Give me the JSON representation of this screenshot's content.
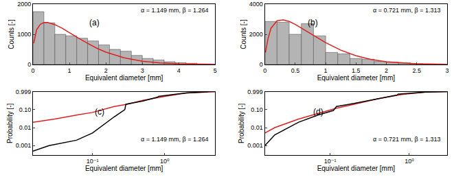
{
  "chart_data": [
    {
      "type": "histogram",
      "annotations": [
        "(a)",
        "α = 1.149 mm, β = 1.264"
      ],
      "x_label": "Equivalent diameter [mm]",
      "y_label": "Counts [-]",
      "xlim": [
        0,
        5
      ],
      "xticks": [
        0,
        1,
        2,
        3,
        4,
        5
      ],
      "ylim": [
        0,
        2000
      ],
      "yticks": [
        0,
        1000,
        2000
      ],
      "grid": false,
      "series": [
        {
          "type": "bar",
          "color": "#b4b4b4",
          "bins": [
            0,
            0.3,
            0.6,
            0.9,
            1.2,
            1.5,
            1.8,
            2.1,
            2.4,
            2.7,
            3.0,
            3.3,
            3.6,
            3.9,
            4.2,
            4.5
          ],
          "values": [
            1750,
            1380,
            1000,
            950,
            870,
            780,
            650,
            500,
            440,
            300,
            200,
            150,
            90,
            60,
            40
          ]
        },
        {
          "type": "line",
          "color": "#e02020",
          "line_style": "solid",
          "x": [
            0.02,
            0.1,
            0.2,
            0.3,
            0.4,
            0.6,
            0.8,
            1.0,
            1.25,
            1.5,
            1.75,
            2.0,
            2.5,
            3.0,
            3.5,
            4.0,
            4.5,
            5.0
          ],
          "values": [
            700,
            1150,
            1330,
            1390,
            1390,
            1320,
            1200,
            1050,
            870,
            700,
            540,
            410,
            220,
            110,
            50,
            22,
            9,
            3
          ]
        }
      ]
    },
    {
      "type": "histogram",
      "annotations": [
        "(b)",
        "α = 0.721 mm, β = 1.313"
      ],
      "x_label": "Equivalent diameter [mm]",
      "y_label": "Counts [-]",
      "xlim": [
        0,
        3
      ],
      "xticks": [
        0,
        0.5,
        1,
        1.5,
        2,
        2.5,
        3
      ],
      "ylim": [
        0,
        4000
      ],
      "yticks": [
        0,
        2000,
        4000
      ],
      "grid": false,
      "series": [
        {
          "type": "bar",
          "color": "#b4b4b4",
          "bins": [
            0,
            0.2,
            0.4,
            0.6,
            0.8,
            1.0,
            1.2,
            1.4,
            1.6,
            1.8,
            2.0,
            2.2,
            2.4,
            2.6,
            2.8
          ],
          "values": [
            2850,
            2800,
            2000,
            2700,
            1900,
            800,
            700,
            400,
            350,
            200,
            150,
            100,
            60,
            30
          ]
        },
        {
          "type": "line",
          "color": "#e02020",
          "line_style": "solid",
          "x": [
            0.01,
            0.05,
            0.1,
            0.2,
            0.3,
            0.4,
            0.5,
            0.75,
            1.0,
            1.25,
            1.5,
            1.75,
            2.0,
            2.5,
            3.0
          ],
          "values": [
            800,
            1700,
            2400,
            2900,
            2950,
            2850,
            2650,
            2050,
            1450,
            950,
            580,
            330,
            180,
            45,
            10
          ]
        }
      ]
    },
    {
      "type": "line",
      "log": true,
      "annotations": [
        "(c)",
        "α = 1.149 mm, β = 1.264"
      ],
      "x_label": "Equivalent diameter [mm]",
      "y_label": "Probability [-]",
      "xlim": [
        0.015,
        5
      ],
      "xticks": [
        {
          "value": 0.1,
          "label": "10⁻¹"
        },
        {
          "value": 1,
          "label": "10⁰"
        }
      ],
      "ylim": [
        0.0003,
        1
      ],
      "yticks": [
        0.001,
        0.01,
        {
          "value": 0.1,
          "label": "0.10"
        },
        0.999
      ],
      "grid": false,
      "series": [
        {
          "type": "line",
          "color": "#e02020",
          "line_style": "solid",
          "x": [
            0.015,
            0.03,
            0.06,
            0.1,
            0.2,
            0.3,
            0.5,
            1,
            2,
            5
          ],
          "values": [
            0.02,
            0.03,
            0.05,
            0.07,
            0.15,
            0.2,
            0.33,
            0.55,
            0.85,
            0.995
          ]
        },
        {
          "type": "line",
          "color": "#000000",
          "line_style": "solid",
          "x": [
            0.015,
            0.025,
            0.06,
            0.1,
            0.2,
            0.28,
            0.29,
            0.5,
            0.8,
            0.82,
            2,
            4
          ],
          "values": [
            0.0005,
            0.001,
            0.002,
            0.005,
            0.04,
            0.1,
            0.2,
            0.3,
            0.5,
            0.55,
            0.85,
            0.99
          ]
        }
      ]
    },
    {
      "type": "line",
      "log": true,
      "annotations": [
        "(d)",
        "α = 0.721 mm, β = 1.313"
      ],
      "x_label": "Equivalent diameter [mm]",
      "y_label": "Probability [-]",
      "xlim": [
        0.015,
        3
      ],
      "xticks": [
        {
          "value": 0.1,
          "label": "10⁻¹"
        },
        {
          "value": 1,
          "label": "10⁰"
        }
      ],
      "ylim": [
        0.0003,
        1
      ],
      "yticks": [
        0.001,
        0.01,
        {
          "value": 0.1,
          "label": "0.10"
        },
        0.999
      ],
      "grid": false,
      "series": [
        {
          "type": "line",
          "color": "#e02020",
          "line_style": "solid",
          "x": [
            0.015,
            0.02,
            0.04,
            0.07,
            0.12,
            0.2,
            0.4,
            0.8,
            1.6,
            3
          ],
          "values": [
            0.005,
            0.01,
            0.03,
            0.06,
            0.12,
            0.2,
            0.4,
            0.7,
            0.95,
            0.999
          ]
        },
        {
          "type": "line",
          "color": "#000000",
          "line_style": "solid",
          "x": [
            0.015,
            0.02,
            0.04,
            0.07,
            0.11,
            0.12,
            0.2,
            0.4,
            0.7,
            0.72,
            1.6,
            3
          ],
          "values": [
            0.001,
            0.004,
            0.02,
            0.05,
            0.09,
            0.15,
            0.22,
            0.4,
            0.65,
            0.72,
            0.95,
            0.999
          ]
        }
      ]
    }
  ]
}
